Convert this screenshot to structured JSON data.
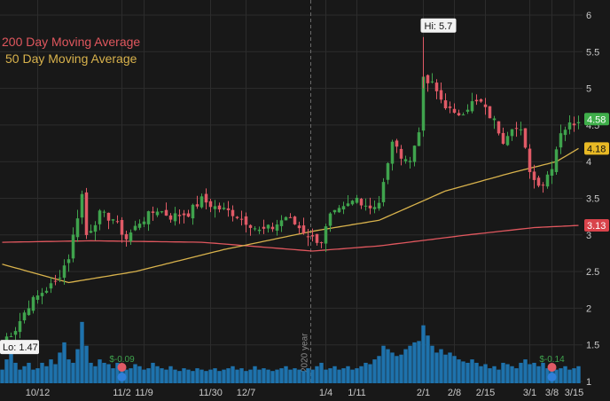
{
  "legend": {
    "ma200": "200 Day Moving Average",
    "ma50": "50 Day Moving Average"
  },
  "colors": {
    "background": "#181818",
    "grid": "#2c2c2c",
    "axis_text": "#c8c8c8",
    "up": "#3fa34d",
    "down": "#e05a66",
    "volume": "#1f77b4",
    "ma200": "#e0575e",
    "ma50": "#d8b24c",
    "last_price_badge": "#3fae4a",
    "ma50_badge": "#e8b925",
    "ma200_badge": "#d9434b",
    "year_divider": "#6a6a6a"
  },
  "chart_data": {
    "type": "candlestick",
    "y_axis": {
      "position": "right",
      "ylim": [
        1,
        6.2
      ],
      "ticks": [
        "1",
        "1.5",
        "2",
        "2.5",
        "3",
        "3.5",
        "4",
        "4.5",
        "5",
        "5.5",
        "6"
      ],
      "tick_values": [
        1,
        1.5,
        2,
        2.5,
        3,
        3.5,
        4,
        4.5,
        5,
        5.5,
        6
      ]
    },
    "x_axis": {
      "ticks": [
        "10/12",
        "11/2",
        "11/9",
        "11/30",
        "12/7",
        "1/4",
        "1/11",
        "2/1",
        "2/8",
        "2/15",
        "3/1",
        "3/8",
        "3/15"
      ],
      "tick_bar_index": [
        8,
        27,
        32,
        47,
        55,
        73,
        80,
        95,
        102,
        109,
        119,
        124,
        129
      ],
      "year_divider_label": "2020 year",
      "year_divider_bar_index": 70
    },
    "annotations": {
      "high_label": "Hi: 5.7",
      "high_value": 5.7,
      "high_bar_index": 95,
      "low_label": "Lo: 1.47",
      "low_value": 1.47,
      "low_bar_index": 1,
      "last_price_label": "4.58",
      "last_price": 4.58,
      "ma50_label": "4.18",
      "ma50_value": 4.18,
      "ma200_label": "3.13",
      "ma200_value": 3.13
    },
    "events": [
      {
        "label": "$-0.09",
        "bar_index": 27
      },
      {
        "label": "$-0.14",
        "bar_index": 124
      }
    ],
    "anchors": [
      [
        0,
        1.55
      ],
      [
        3,
        1.72
      ],
      [
        6,
        2.05
      ],
      [
        9,
        2.22
      ],
      [
        12,
        2.35
      ],
      [
        15,
        2.7
      ],
      [
        18,
        3.55
      ],
      [
        19,
        3.0
      ],
      [
        22,
        3.28
      ],
      [
        25,
        3.22
      ],
      [
        28,
        2.95
      ],
      [
        31,
        3.18
      ],
      [
        35,
        3.35
      ],
      [
        38,
        3.25
      ],
      [
        42,
        3.3
      ],
      [
        45,
        3.48
      ],
      [
        48,
        3.38
      ],
      [
        52,
        3.3
      ],
      [
        56,
        3.15
      ],
      [
        58,
        3.05
      ],
      [
        61,
        3.1
      ],
      [
        64,
        3.25
      ],
      [
        67,
        3.1
      ],
      [
        70,
        2.95
      ],
      [
        72,
        2.92
      ],
      [
        74,
        3.25
      ],
      [
        77,
        3.35
      ],
      [
        80,
        3.5
      ],
      [
        83,
        3.38
      ],
      [
        85,
        3.45
      ],
      [
        87,
        3.95
      ],
      [
        88,
        4.3
      ],
      [
        89,
        4.15
      ],
      [
        92,
        4.0
      ],
      [
        94,
        4.45
      ],
      [
        95,
        5.1
      ],
      [
        97,
        5.05
      ],
      [
        99,
        4.85
      ],
      [
        102,
        4.62
      ],
      [
        104,
        4.7
      ],
      [
        106,
        4.8
      ],
      [
        108,
        4.8
      ],
      [
        109,
        4.7
      ],
      [
        111,
        4.55
      ],
      [
        113,
        4.3
      ],
      [
        115,
        4.5
      ],
      [
        117,
        4.4
      ],
      [
        119,
        3.9
      ],
      [
        120,
        3.75
      ],
      [
        122,
        3.7
      ],
      [
        124,
        3.95
      ],
      [
        126,
        4.42
      ],
      [
        128,
        4.5
      ],
      [
        130,
        4.58
      ]
    ],
    "ma200_anchors": [
      [
        0,
        2.9
      ],
      [
        20,
        2.92
      ],
      [
        45,
        2.9
      ],
      [
        70,
        2.78
      ],
      [
        85,
        2.85
      ],
      [
        105,
        3.0
      ],
      [
        120,
        3.1
      ],
      [
        130,
        3.13
      ]
    ],
    "ma50_anchors": [
      [
        0,
        2.6
      ],
      [
        15,
        2.35
      ],
      [
        30,
        2.5
      ],
      [
        50,
        2.8
      ],
      [
        70,
        3.05
      ],
      [
        85,
        3.2
      ],
      [
        100,
        3.6
      ],
      [
        115,
        3.85
      ],
      [
        125,
        4.0
      ],
      [
        130,
        4.18
      ]
    ],
    "volume_pattern": [
      0.2,
      0.35,
      0.55,
      0.3,
      0.2,
      0.25,
      0.3,
      0.2,
      0.22,
      0.3,
      0.25,
      0.35,
      0.28,
      0.45,
      0.6,
      0.35,
      0.3,
      0.5,
      0.9,
      0.55,
      0.3,
      0.25,
      0.35,
      0.3,
      0.28,
      0.22,
      0.3,
      0.25,
      0.2,
      0.22,
      0.28,
      0.25,
      0.2,
      0.22,
      0.3,
      0.25,
      0.22,
      0.2,
      0.25,
      0.2,
      0.18,
      0.22,
      0.2,
      0.18,
      0.22,
      0.2,
      0.18,
      0.2,
      0.22,
      0.18,
      0.2,
      0.22,
      0.25,
      0.2,
      0.22,
      0.18,
      0.2,
      0.25,
      0.2,
      0.22,
      0.2,
      0.18,
      0.2,
      0.22,
      0.25,
      0.2,
      0.22,
      0.2,
      0.18,
      0.22,
      0.2,
      0.25,
      0.3,
      0.2,
      0.22,
      0.25,
      0.2,
      0.22,
      0.25,
      0.2,
      0.22,
      0.25,
      0.3,
      0.28,
      0.35,
      0.4,
      0.55,
      0.5,
      0.45,
      0.4,
      0.42,
      0.5,
      0.55,
      0.6,
      0.62,
      0.85,
      0.7,
      0.55,
      0.45,
      0.5,
      0.42,
      0.45,
      0.4,
      0.35,
      0.32,
      0.3,
      0.35,
      0.3,
      0.25,
      0.28,
      0.22,
      0.25,
      0.2,
      0.3,
      0.28,
      0.25,
      0.22,
      0.3,
      0.35,
      0.28,
      0.3,
      0.25,
      0.3,
      0.22,
      0.25,
      0.2,
      0.22,
      0.25,
      0.2,
      0.22,
      0.25
    ],
    "volume_max_fraction": 0.17
  }
}
